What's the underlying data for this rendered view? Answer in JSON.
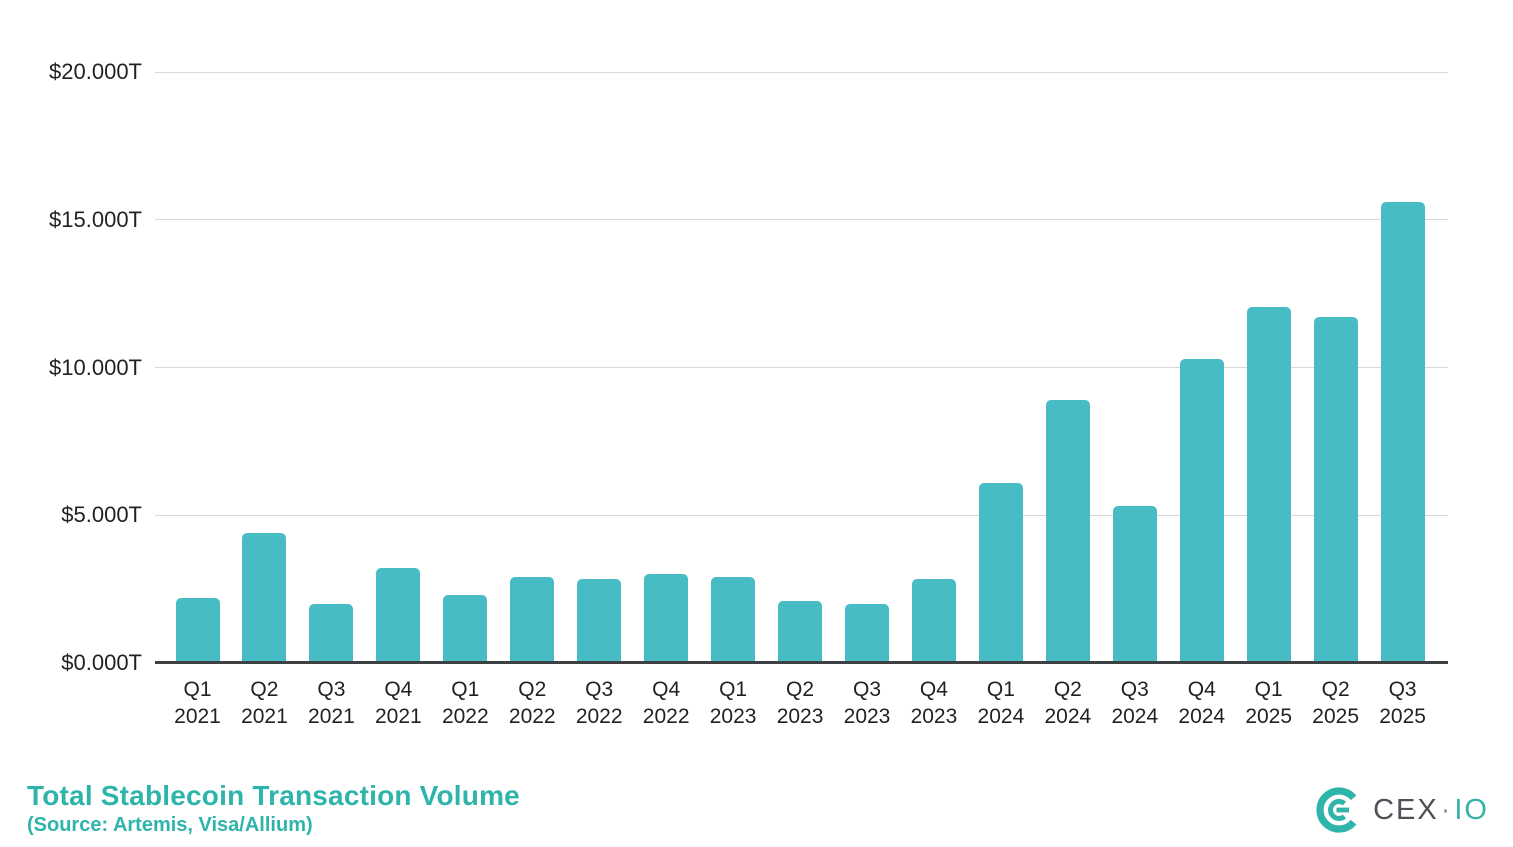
{
  "chart_data": {
    "type": "bar",
    "title": "Total Stablecoin Transaction Volume",
    "source_note": "(Source: Artemis, Visa/Allium)",
    "xlabel": "",
    "ylabel": "",
    "ylim": [
      0,
      20
    ],
    "grid": true,
    "legend": false,
    "yticks": [
      {
        "label": "$0.000T",
        "value": 0
      },
      {
        "label": "$5.000T",
        "value": 5
      },
      {
        "label": "$10.000T",
        "value": 10
      },
      {
        "label": "$15.000T",
        "value": 15
      },
      {
        "label": "$20.000T",
        "value": 20
      }
    ],
    "categories": [
      {
        "quarter": "Q1",
        "year": "2021"
      },
      {
        "quarter": "Q2",
        "year": "2021"
      },
      {
        "quarter": "Q3",
        "year": "2021"
      },
      {
        "quarter": "Q4",
        "year": "2021"
      },
      {
        "quarter": "Q1",
        "year": "2022"
      },
      {
        "quarter": "Q2",
        "year": "2022"
      },
      {
        "quarter": "Q3",
        "year": "2022"
      },
      {
        "quarter": "Q4",
        "year": "2022"
      },
      {
        "quarter": "Q1",
        "year": "2023"
      },
      {
        "quarter": "Q2",
        "year": "2023"
      },
      {
        "quarter": "Q3",
        "year": "2023"
      },
      {
        "quarter": "Q4",
        "year": "2023"
      },
      {
        "quarter": "Q1",
        "year": "2024"
      },
      {
        "quarter": "Q2",
        "year": "2024"
      },
      {
        "quarter": "Q3",
        "year": "2024"
      },
      {
        "quarter": "Q4",
        "year": "2024"
      },
      {
        "quarter": "Q1",
        "year": "2025"
      },
      {
        "quarter": "Q2",
        "year": "2025"
      },
      {
        "quarter": "Q3",
        "year": "2025"
      }
    ],
    "values": [
      2.2,
      4.4,
      2.0,
      3.2,
      2.3,
      2.9,
      2.85,
      3.0,
      2.9,
      2.1,
      2.0,
      2.85,
      6.1,
      8.9,
      5.3,
      10.3,
      12.05,
      11.7,
      15.6
    ],
    "unit": "$T"
  },
  "branding": {
    "logo_text_primary": "CEX",
    "logo_separator": "·",
    "logo_text_secondary": "IO"
  },
  "colors": {
    "bar": "#47BCC5",
    "title": "#2FB4AB",
    "gridline": "#D9D9D9",
    "axis_line": "#3D4043",
    "tick_text": "#1F2124",
    "logo_gray": "#4B5157",
    "logo_teal": "#35B2A8"
  }
}
